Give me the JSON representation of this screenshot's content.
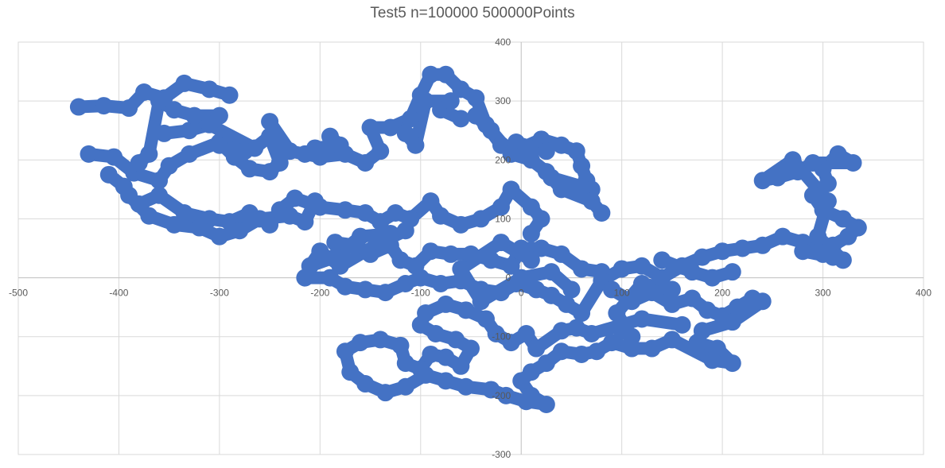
{
  "chart_data": {
    "type": "scatter",
    "title": "Test5 n=100000 500000Points",
    "xlabel": "",
    "ylabel": "",
    "xlim": [
      -500,
      400
    ],
    "ylim": [
      -300,
      400
    ],
    "x_ticks": [
      -500,
      -400,
      -300,
      -200,
      -100,
      0,
      100,
      200,
      300,
      400
    ],
    "y_ticks": [
      400,
      300,
      200,
      100,
      0,
      -100,
      -200,
      -300
    ],
    "grid": true,
    "legend": "none",
    "series_color": "#4472C4",
    "series": [
      {
        "points": [
          [
            -440,
            290
          ],
          [
            -415,
            292
          ],
          [
            -390,
            288
          ],
          [
            -375,
            315
          ],
          [
            -355,
            305
          ],
          [
            -335,
            330
          ],
          [
            -310,
            320
          ],
          [
            -290,
            310
          ],
          [
            -430,
            210
          ],
          [
            -405,
            205
          ],
          [
            -385,
            178
          ],
          [
            -360,
            165
          ],
          [
            -350,
            190
          ],
          [
            -330,
            210
          ],
          [
            -300,
            230
          ],
          [
            -285,
            205
          ],
          [
            -270,
            185
          ],
          [
            -250,
            180
          ],
          [
            -240,
            195
          ],
          [
            -250,
            240
          ],
          [
            -265,
            220
          ],
          [
            -310,
            260
          ],
          [
            -330,
            250
          ],
          [
            -355,
            245
          ],
          [
            -250,
            265
          ],
          [
            -230,
            215
          ],
          [
            -200,
            205
          ],
          [
            -175,
            210
          ],
          [
            -155,
            195
          ],
          [
            -140,
            215
          ],
          [
            -150,
            255
          ],
          [
            -130,
            255
          ],
          [
            -110,
            270
          ],
          [
            -100,
            310
          ],
          [
            -90,
            345
          ],
          [
            -75,
            345
          ],
          [
            -60,
            320
          ],
          [
            -45,
            305
          ],
          [
            -35,
            260
          ],
          [
            -20,
            225
          ],
          [
            0,
            220
          ],
          [
            20,
            235
          ],
          [
            40,
            225
          ],
          [
            55,
            215
          ],
          [
            60,
            190
          ],
          [
            65,
            165
          ],
          [
            70,
            150
          ],
          [
            30,
            170
          ],
          [
            -380,
            125
          ],
          [
            -360,
            140
          ],
          [
            -335,
            110
          ],
          [
            -310,
            100
          ],
          [
            -290,
            95
          ],
          [
            -270,
            110
          ],
          [
            -250,
            90
          ],
          [
            -240,
            115
          ],
          [
            -225,
            135
          ],
          [
            -200,
            120
          ],
          [
            -175,
            115
          ],
          [
            -155,
            110
          ],
          [
            -140,
            95
          ],
          [
            -125,
            110
          ],
          [
            -110,
            100
          ],
          [
            -90,
            130
          ],
          [
            -80,
            105
          ],
          [
            -60,
            90
          ],
          [
            -40,
            100
          ],
          [
            -20,
            120
          ],
          [
            -10,
            150
          ],
          [
            10,
            120
          ],
          [
            20,
            100
          ],
          [
            10,
            75
          ],
          [
            -185,
            60
          ],
          [
            -165,
            55
          ],
          [
            -150,
            40
          ],
          [
            -130,
            55
          ],
          [
            -120,
            30
          ],
          [
            -105,
            20
          ],
          [
            -90,
            45
          ],
          [
            -70,
            40
          ],
          [
            -50,
            40
          ],
          [
            -30,
            30
          ],
          [
            -10,
            20
          ],
          [
            0,
            50
          ],
          [
            20,
            50
          ],
          [
            40,
            40
          ],
          [
            60,
            15
          ],
          [
            80,
            10
          ],
          [
            -215,
            0
          ],
          [
            -190,
            0
          ],
          [
            -175,
            -15
          ],
          [
            -155,
            -20
          ],
          [
            -135,
            -25
          ],
          [
            -115,
            -10
          ],
          [
            -100,
            0
          ],
          [
            -80,
            -10
          ],
          [
            -60,
            -5
          ],
          [
            -40,
            -20
          ],
          [
            -20,
            -25
          ],
          [
            -5,
            -10
          ],
          [
            15,
            -20
          ],
          [
            30,
            -30
          ],
          [
            45,
            -45
          ],
          [
            60,
            -60
          ],
          [
            80,
            -5
          ],
          [
            100,
            15
          ],
          [
            120,
            20
          ],
          [
            140,
            0
          ],
          [
            160,
            20
          ],
          [
            180,
            35
          ],
          [
            200,
            45
          ],
          [
            220,
            50
          ],
          [
            240,
            55
          ],
          [
            260,
            70
          ],
          [
            280,
            60
          ],
          [
            300,
            40
          ],
          [
            310,
            55
          ],
          [
            325,
            70
          ],
          [
            335,
            85
          ],
          [
            320,
            100
          ],
          [
            300,
            115
          ],
          [
            290,
            140
          ],
          [
            305,
            160
          ],
          [
            300,
            185
          ],
          [
            315,
            210
          ],
          [
            330,
            195
          ],
          [
            290,
            195
          ],
          [
            275,
            180
          ],
          [
            255,
            170
          ],
          [
            240,
            165
          ],
          [
            270,
            200
          ],
          [
            305,
            130
          ],
          [
            295,
            70
          ],
          [
            320,
            30
          ],
          [
            310,
            35
          ],
          [
            280,
            45
          ],
          [
            90,
            -20
          ],
          [
            110,
            -40
          ],
          [
            130,
            -25
          ],
          [
            150,
            -45
          ],
          [
            170,
            -35
          ],
          [
            185,
            -55
          ],
          [
            200,
            -65
          ],
          [
            215,
            -50
          ],
          [
            230,
            -35
          ],
          [
            240,
            -40
          ],
          [
            210,
            -75
          ],
          [
            180,
            -90
          ],
          [
            175,
            -110
          ],
          [
            195,
            -120
          ],
          [
            210,
            -145
          ],
          [
            190,
            -140
          ],
          [
            150,
            -105
          ],
          [
            130,
            -120
          ],
          [
            110,
            -120
          ],
          [
            90,
            -110
          ],
          [
            75,
            -125
          ],
          [
            60,
            -130
          ],
          [
            40,
            -125
          ],
          [
            25,
            -145
          ],
          [
            10,
            -160
          ],
          [
            0,
            -175
          ],
          [
            10,
            -200
          ],
          [
            25,
            -215
          ],
          [
            5,
            -210
          ],
          [
            -15,
            -200
          ],
          [
            -30,
            -190
          ],
          [
            -55,
            -185
          ],
          [
            -75,
            -175
          ],
          [
            -95,
            -165
          ],
          [
            -115,
            -185
          ],
          [
            -135,
            -195
          ],
          [
            -155,
            -180
          ],
          [
            -170,
            -160
          ],
          [
            -175,
            -125
          ],
          [
            -160,
            -110
          ],
          [
            -140,
            -105
          ],
          [
            -120,
            -115
          ],
          [
            -115,
            -145
          ],
          [
            -100,
            -155
          ],
          [
            -90,
            -130
          ],
          [
            -75,
            -135
          ],
          [
            -60,
            -150
          ],
          [
            -50,
            -120
          ],
          [
            -65,
            -105
          ],
          [
            -85,
            -95
          ],
          [
            -100,
            -80
          ],
          [
            -95,
            -60
          ],
          [
            -75,
            -45
          ],
          [
            -55,
            -55
          ],
          [
            -35,
            -70
          ],
          [
            -25,
            -95
          ],
          [
            -10,
            -110
          ],
          [
            5,
            -95
          ],
          [
            15,
            -120
          ],
          [
            40,
            -90
          ],
          [
            55,
            -85
          ],
          [
            70,
            -95
          ],
          [
            120,
            -70
          ],
          [
            160,
            -80
          ],
          [
            100,
            -90
          ],
          [
            50,
            -20
          ],
          [
            30,
            10
          ],
          [
            0,
            0
          ],
          [
            -40,
            -40
          ],
          [
            -60,
            15
          ],
          [
            -20,
            60
          ],
          [
            10,
            30
          ],
          [
            140,
            30
          ],
          [
            170,
            10
          ],
          [
            190,
            0
          ],
          [
            210,
            10
          ],
          [
            150,
            -20
          ],
          [
            120,
            -10
          ],
          [
            95,
            -60
          ],
          [
            110,
            -100
          ],
          [
            -5,
            230
          ],
          [
            25,
            215
          ],
          [
            -80,
            285
          ],
          [
            -60,
            270
          ],
          [
            -115,
            245
          ],
          [
            -105,
            225
          ],
          [
            -95,
            300
          ],
          [
            -70,
            300
          ],
          [
            -190,
            240
          ],
          [
            -180,
            225
          ],
          [
            -205,
            220
          ],
          [
            -215,
            210
          ],
          [
            -300,
            225
          ],
          [
            -275,
            215
          ],
          [
            -380,
            195
          ],
          [
            -370,
            210
          ],
          [
            -360,
            300
          ],
          [
            -345,
            285
          ],
          [
            -325,
            275
          ],
          [
            -300,
            275
          ],
          [
            -410,
            175
          ],
          [
            -395,
            155
          ],
          [
            -390,
            140
          ],
          [
            -370,
            105
          ],
          [
            -345,
            90
          ],
          [
            -320,
            85
          ],
          [
            -300,
            70
          ],
          [
            -280,
            80
          ],
          [
            -260,
            100
          ],
          [
            -230,
            105
          ],
          [
            -215,
            95
          ],
          [
            -205,
            130
          ],
          [
            -130,
            75
          ],
          [
            -160,
            70
          ],
          [
            -185,
            35
          ],
          [
            -210,
            20
          ],
          [
            -200,
            45
          ],
          [
            -180,
            20
          ],
          [
            -140,
            60
          ],
          [
            -115,
            80
          ],
          [
            80,
            110
          ],
          [
            70,
            130
          ],
          [
            40,
            150
          ],
          [
            25,
            180
          ],
          [
            10,
            200
          ],
          [
            -10,
            210
          ],
          [
            -30,
            250
          ],
          [
            -45,
            275
          ]
        ]
      }
    ]
  }
}
